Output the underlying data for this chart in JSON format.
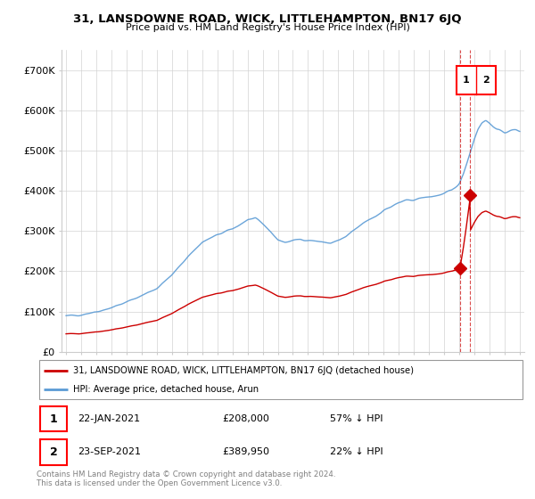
{
  "title": "31, LANSDOWNE ROAD, WICK, LITTLEHAMPTON, BN17 6JQ",
  "subtitle": "Price paid vs. HM Land Registry's House Price Index (HPI)",
  "ylim": [
    0,
    750000
  ],
  "yticks": [
    0,
    100000,
    200000,
    300000,
    400000,
    500000,
    600000,
    700000
  ],
  "ytick_labels": [
    "£0",
    "£100K",
    "£200K",
    "£300K",
    "£400K",
    "£500K",
    "£600K",
    "£700K"
  ],
  "hpi_color": "#5b9bd5",
  "price_color": "#cc0000",
  "legend_label_1": "31, LANSDOWNE ROAD, WICK, LITTLEHAMPTON, BN17 6JQ (detached house)",
  "legend_label_2": "HPI: Average price, detached house, Arun",
  "table_row1": [
    "1",
    "22-JAN-2021",
    "£208,000",
    "57% ↓ HPI"
  ],
  "table_row2": [
    "2",
    "23-SEP-2021",
    "£389,950",
    "22% ↓ HPI"
  ],
  "footnote": "Contains HM Land Registry data © Crown copyright and database right 2024.\nThis data is licensed under the Open Government Licence v3.0.",
  "sale1_year": 2021.06,
  "sale1_price": 208000,
  "sale2_year": 2021.73,
  "sale2_price": 389950,
  "hpi_scale": 0.43
}
